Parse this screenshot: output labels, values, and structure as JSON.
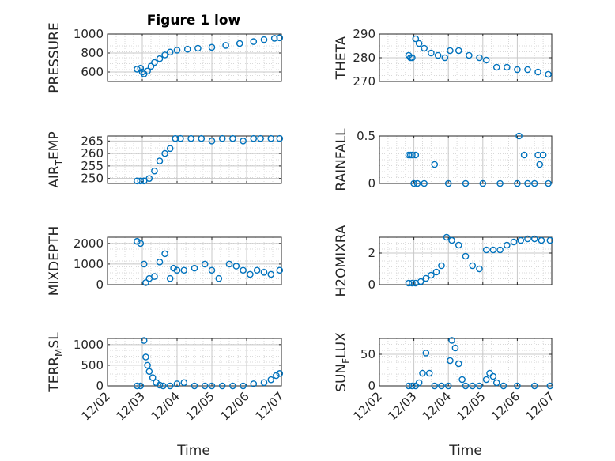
{
  "title": "Figure 1 low",
  "colors": {
    "marker": "#0072BD",
    "axis": "#262626",
    "grid": "#d9d9d9",
    "background": "#ffffff"
  },
  "time_ticks": [
    "12/02",
    "12/03",
    "12/04",
    "12/05",
    "12/06",
    "12/07"
  ],
  "xlabel": "Time",
  "chart_data": [
    {
      "type": "scatter",
      "ylabel": "PRESSURE",
      "ylim": [
        500,
        1000
      ],
      "yticks": [
        600,
        800,
        1000
      ],
      "x": [
        0.85,
        0.95,
        1.0,
        1.05,
        1.15,
        1.25,
        1.35,
        1.5,
        1.65,
        1.8,
        2.0,
        2.3,
        2.6,
        3.0,
        3.4,
        3.8,
        4.2,
        4.5,
        4.8,
        4.95
      ],
      "y": [
        630,
        640,
        600,
        580,
        610,
        660,
        700,
        740,
        780,
        810,
        830,
        840,
        850,
        860,
        880,
        900,
        920,
        940,
        955,
        960
      ]
    },
    {
      "type": "scatter",
      "ylabel": "THETA",
      "ylim": [
        270,
        290
      ],
      "yticks": [
        270,
        280,
        290
      ],
      "x": [
        0.85,
        0.9,
        0.95,
        1.05,
        1.15,
        1.3,
        1.5,
        1.7,
        1.9,
        2.05,
        2.3,
        2.6,
        2.9,
        3.1,
        3.4,
        3.7,
        4.0,
        4.3,
        4.6,
        4.9
      ],
      "y": [
        281,
        280,
        280,
        288,
        286,
        284,
        282,
        281,
        280,
        283,
        283,
        281,
        280,
        279,
        276,
        276,
        275,
        275,
        274,
        273
      ]
    },
    {
      "type": "scatter",
      "ylabel": "AIR_TEMP",
      "ylim": [
        248,
        267
      ],
      "yticks": [
        250,
        255,
        260,
        265
      ],
      "x": [
        0.85,
        0.95,
        1.05,
        1.2,
        1.35,
        1.5,
        1.65,
        1.8,
        1.95,
        2.1,
        2.4,
        2.7,
        3.0,
        3.3,
        3.6,
        3.9,
        4.2,
        4.4,
        4.7,
        4.95
      ],
      "y": [
        249,
        249,
        249,
        250,
        253,
        257,
        260,
        262,
        266,
        266,
        266,
        266,
        265,
        266,
        266,
        265,
        266,
        266,
        266,
        266
      ]
    },
    {
      "type": "scatter",
      "ylabel": "RAINFALL",
      "ylim": [
        0,
        0.5
      ],
      "yticks": [
        0,
        0.5
      ],
      "x": [
        0.85,
        0.9,
        0.95,
        1.0,
        1.05,
        1.1,
        1.3,
        1.6,
        2.0,
        2.5,
        3.0,
        3.5,
        4.0,
        4.05,
        4.2,
        4.3,
        4.5,
        4.6,
        4.65,
        4.75,
        4.9
      ],
      "y": [
        0.3,
        0.3,
        0.3,
        0.0,
        0.3,
        0.0,
        0.0,
        0.2,
        0.0,
        0.0,
        0.0,
        0.0,
        0.0,
        0.5,
        0.3,
        0.0,
        0.0,
        0.3,
        0.2,
        0.3,
        0.0
      ]
    },
    {
      "type": "scatter",
      "ylabel": "MIXDEPTH",
      "ylim": [
        0,
        2300
      ],
      "yticks": [
        0,
        1000,
        2000
      ],
      "x": [
        0.85,
        0.95,
        1.05,
        1.1,
        1.2,
        1.35,
        1.5,
        1.65,
        1.8,
        1.9,
        2.0,
        2.2,
        2.5,
        2.8,
        3.0,
        3.2,
        3.5,
        3.7,
        3.9,
        4.1,
        4.3,
        4.5,
        4.7,
        4.95
      ],
      "y": [
        2100,
        2000,
        1000,
        100,
        300,
        400,
        1100,
        1500,
        300,
        800,
        700,
        700,
        800,
        1000,
        700,
        300,
        1000,
        900,
        700,
        500,
        700,
        600,
        500,
        700
      ]
    },
    {
      "type": "scatter",
      "ylabel": "H2OMIXRA",
      "ylim": [
        0,
        3
      ],
      "yticks": [
        0,
        2
      ],
      "x": [
        0.85,
        0.95,
        1.05,
        1.2,
        1.35,
        1.5,
        1.65,
        1.8,
        1.95,
        2.1,
        2.3,
        2.5,
        2.7,
        2.9,
        3.1,
        3.3,
        3.5,
        3.7,
        3.9,
        4.1,
        4.3,
        4.5,
        4.7,
        4.95
      ],
      "y": [
        0.1,
        0.1,
        0.1,
        0.2,
        0.4,
        0.6,
        0.8,
        1.2,
        3.0,
        2.8,
        2.5,
        1.8,
        1.2,
        1.0,
        2.2,
        2.2,
        2.2,
        2.5,
        2.7,
        2.8,
        2.9,
        2.9,
        2.8,
        2.8
      ]
    },
    {
      "type": "scatter",
      "ylabel": "TERR_MSL",
      "ylim": [
        0,
        1150
      ],
      "yticks": [
        0,
        500,
        1000
      ],
      "x": [
        0.85,
        0.95,
        1.05,
        1.1,
        1.15,
        1.2,
        1.3,
        1.4,
        1.5,
        1.6,
        1.8,
        2.0,
        2.2,
        2.5,
        2.8,
        3.0,
        3.3,
        3.6,
        3.9,
        4.2,
        4.5,
        4.7,
        4.85,
        4.95
      ],
      "y": [
        0,
        0,
        1100,
        700,
        500,
        350,
        200,
        80,
        20,
        0,
        0,
        50,
        80,
        0,
        0,
        0,
        0,
        0,
        0,
        50,
        80,
        150,
        250,
        300
      ]
    },
    {
      "type": "scatter",
      "ylabel": "SUN_FLUX",
      "ylim": [
        0,
        75
      ],
      "yticks": [
        0,
        50
      ],
      "x": [
        0.85,
        0.95,
        1.05,
        1.15,
        1.25,
        1.35,
        1.45,
        1.6,
        1.8,
        2.0,
        2.05,
        2.1,
        2.2,
        2.3,
        2.4,
        2.5,
        2.7,
        2.9,
        3.1,
        3.2,
        3.3,
        3.4,
        3.6,
        4.0,
        4.5,
        4.95
      ],
      "y": [
        0,
        0,
        0,
        5,
        20,
        52,
        20,
        0,
        0,
        0,
        40,
        72,
        60,
        35,
        10,
        0,
        0,
        0,
        10,
        20,
        15,
        5,
        0,
        0,
        0,
        0
      ]
    }
  ]
}
